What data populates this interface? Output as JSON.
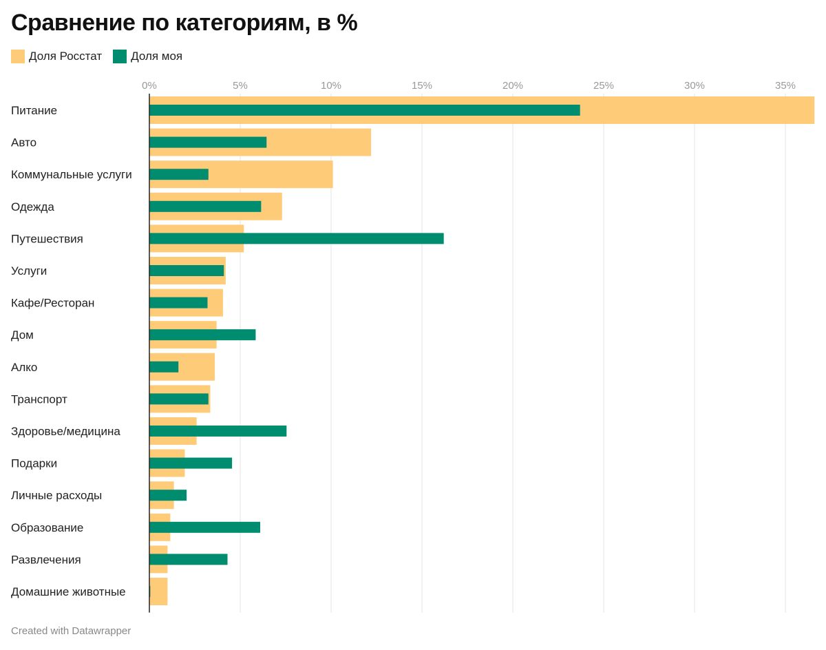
{
  "title": "Сравнение по категориям, в %",
  "footer": "Created with Datawrapper",
  "colors": {
    "rosstat": "#fecb78",
    "mine": "#008c6e",
    "grid": "#e3e3e3",
    "axis": "#222222"
  },
  "chart_data": {
    "type": "bar",
    "orientation": "horizontal",
    "title": "Сравнение по категориям, в %",
    "xlabel": "",
    "ylabel": "",
    "xlim": [
      0,
      36.5
    ],
    "ticks": [
      0,
      5,
      10,
      15,
      20,
      25,
      30,
      35
    ],
    "tick_labels": [
      "0%",
      "5%",
      "10%",
      "15%",
      "20%",
      "25%",
      "30%",
      "35%"
    ],
    "legend_position": "top-left",
    "grid": true,
    "categories": [
      "Питание",
      "Авто",
      "Коммунальные услуги",
      "Одежда",
      "Путешествия",
      "Услуги",
      "Кафе/Ресторан",
      "Дом",
      "Алко",
      "Транспорт",
      "Здоровье/медицина",
      "Подарки",
      "Личные расходы",
      "Образование",
      "Развлечения",
      "Домашние животные"
    ],
    "series": [
      {
        "name": "Доля Росстат",
        "values": [
          36.6,
          12.2,
          10.1,
          7.3,
          5.2,
          4.2,
          4.05,
          3.7,
          3.6,
          3.35,
          2.6,
          1.95,
          1.35,
          1.15,
          1.0,
          1.0
        ]
      },
      {
        "name": "Доля моя",
        "values": [
          23.7,
          6.45,
          3.25,
          6.15,
          16.2,
          4.1,
          3.2,
          5.85,
          1.6,
          3.25,
          7.55,
          4.55,
          2.05,
          6.1,
          4.3,
          0.05
        ]
      }
    ]
  }
}
